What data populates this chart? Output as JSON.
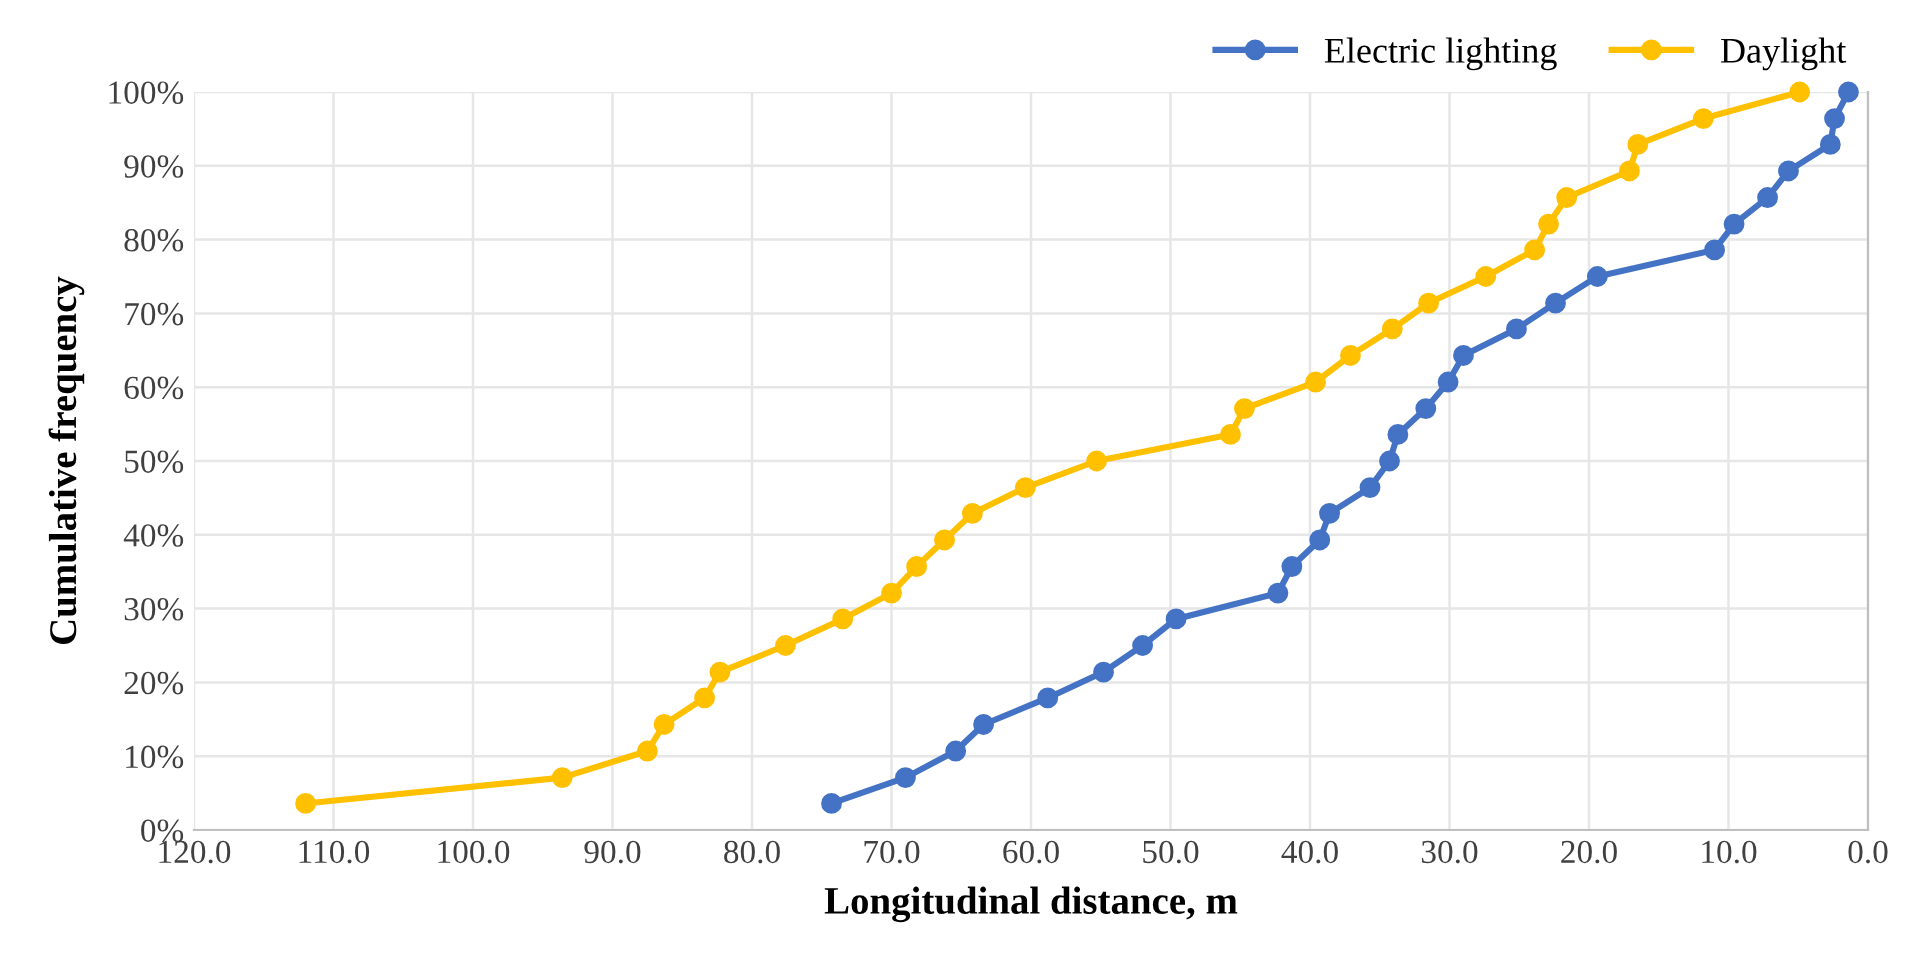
{
  "chart_data": {
    "type": "line",
    "xlabel": "Longitudinal distance, m",
    "ylabel": "Cumulative frequency",
    "xlim": [
      120,
      0
    ],
    "ylim": [
      0,
      100
    ],
    "xticks": [
      {
        "value": 120,
        "label": "120.0"
      },
      {
        "value": 110,
        "label": "110.0"
      },
      {
        "value": 100,
        "label": "100.0"
      },
      {
        "value": 90,
        "label": "90.0"
      },
      {
        "value": 80,
        "label": "80.0"
      },
      {
        "value": 70,
        "label": "70.0"
      },
      {
        "value": 60,
        "label": "60.0"
      },
      {
        "value": 50,
        "label": "50.0"
      },
      {
        "value": 40,
        "label": "40.0"
      },
      {
        "value": 30,
        "label": "30.0"
      },
      {
        "value": 20,
        "label": "20.0"
      },
      {
        "value": 10,
        "label": "10.0"
      },
      {
        "value": 0,
        "label": "0.0"
      }
    ],
    "yticks": [
      {
        "value": 0,
        "label": "0%"
      },
      {
        "value": 10,
        "label": "10%"
      },
      {
        "value": 20,
        "label": "20%"
      },
      {
        "value": 30,
        "label": "30%"
      },
      {
        "value": 40,
        "label": "40%"
      },
      {
        "value": 50,
        "label": "50%"
      },
      {
        "value": 60,
        "label": "60%"
      },
      {
        "value": 70,
        "label": "70%"
      },
      {
        "value": 80,
        "label": "80%"
      },
      {
        "value": 90,
        "label": "90%"
      },
      {
        "value": 100,
        "label": "100%"
      }
    ],
    "grid": true,
    "legend": "top right",
    "marker": "circle",
    "line_style": "solid",
    "series": [
      {
        "name": "Electric lighting",
        "color": "#4472c4",
        "x": [
          74.3,
          69.0,
          65.4,
          63.4,
          58.8,
          54.8,
          52.0,
          49.6,
          42.3,
          41.3,
          39.3,
          38.6,
          35.7,
          34.3,
          33.7,
          31.7,
          30.1,
          29.0,
          25.2,
          22.4,
          19.4,
          11.0,
          9.6,
          7.2,
          5.7,
          2.7,
          2.4,
          1.4
        ],
        "values": [
          3.6,
          7.1,
          10.7,
          14.3,
          17.9,
          21.4,
          25.0,
          28.6,
          32.1,
          35.7,
          39.3,
          42.9,
          46.4,
          50.0,
          53.6,
          57.1,
          60.7,
          64.3,
          67.9,
          71.4,
          75.0,
          78.6,
          82.1,
          85.7,
          89.3,
          92.9,
          96.4,
          100
        ]
      },
      {
        "name": "Daylight",
        "color": "#ffc000",
        "x": [
          112.0,
          93.6,
          87.5,
          86.3,
          83.4,
          82.3,
          77.6,
          73.5,
          70.0,
          68.2,
          66.2,
          64.2,
          60.4,
          55.3,
          45.7,
          44.7,
          39.6,
          37.1,
          34.1,
          31.5,
          27.4,
          23.9,
          22.9,
          21.6,
          17.1,
          16.5,
          11.8,
          4.9
        ],
        "values": [
          3.6,
          7.1,
          10.7,
          14.3,
          17.9,
          21.4,
          25.0,
          28.6,
          32.1,
          35.7,
          39.3,
          42.9,
          46.4,
          50.0,
          53.6,
          57.1,
          60.7,
          64.3,
          67.9,
          71.4,
          75.0,
          78.6,
          82.1,
          85.7,
          89.3,
          92.9,
          96.4,
          100
        ]
      }
    ]
  }
}
